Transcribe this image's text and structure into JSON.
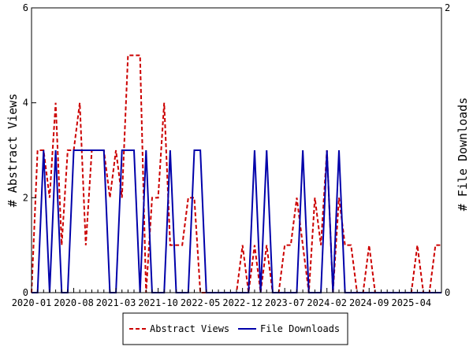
{
  "chart_data": {
    "type": "line",
    "x_start": "2020-01",
    "x_end": "2025-09",
    "x": [
      "2020-01",
      "2020-02",
      "2020-03",
      "2020-04",
      "2020-05",
      "2020-06",
      "2020-07",
      "2020-08",
      "2020-09",
      "2020-10",
      "2020-11",
      "2020-12",
      "2021-01",
      "2021-02",
      "2021-03",
      "2021-04",
      "2021-05",
      "2021-06",
      "2021-07",
      "2021-08",
      "2021-09",
      "2021-10",
      "2021-11",
      "2021-12",
      "2022-01",
      "2022-02",
      "2022-03",
      "2022-04",
      "2022-05",
      "2022-06",
      "2022-07",
      "2022-08",
      "2022-09",
      "2022-10",
      "2022-11",
      "2022-12",
      "2023-01",
      "2023-02",
      "2023-03",
      "2023-04",
      "2023-05",
      "2023-06",
      "2023-07",
      "2023-08",
      "2023-09",
      "2023-10",
      "2023-11",
      "2023-12",
      "2024-01",
      "2024-02",
      "2024-03",
      "2024-04",
      "2024-05",
      "2024-06",
      "2024-07",
      "2024-08",
      "2024-09",
      "2024-10",
      "2024-11",
      "2024-12",
      "2025-01",
      "2025-02",
      "2025-03",
      "2025-04",
      "2025-05",
      "2025-06",
      "2025-07",
      "2025-08",
      "2025-09"
    ],
    "x_tick_labels": [
      "2020-01",
      "2020-08",
      "2021-03",
      "2021-10",
      "2022-05",
      "2022-12",
      "2023-07",
      "2024-02",
      "2024-09",
      "2025-04"
    ],
    "xlabel": "",
    "ylabel_left": "# Abstract Views",
    "ylabel_right": "# File Downloads",
    "ylim_left": [
      0,
      6
    ],
    "ylim_right": [
      0,
      2
    ],
    "yticks_left": [
      "0",
      "2",
      "4",
      "6"
    ],
    "yticks_right": [
      "0",
      "2"
    ],
    "legend_position": "bottom",
    "series": [
      {
        "name": "Abstract Views",
        "axis": "left",
        "color": "#cc0000",
        "style": "dashed",
        "values": [
          0,
          3,
          3,
          2,
          4,
          1,
          3,
          3,
          4,
          1,
          3,
          3,
          3,
          2,
          3,
          2,
          5,
          5,
          5,
          0,
          2,
          2,
          4,
          1,
          1,
          1,
          2,
          2,
          0,
          0,
          0,
          0,
          0,
          0,
          0,
          1,
          0,
          1,
          0,
          1,
          0,
          0,
          1,
          1,
          2,
          1,
          0,
          2,
          1,
          3,
          0,
          2,
          1,
          1,
          0,
          0,
          1,
          0,
          0,
          0,
          0,
          0,
          0,
          0,
          1,
          0,
          0,
          1,
          1
        ]
      },
      {
        "name": "File Downloads",
        "axis": "right",
        "color": "#0000aa",
        "style": "solid",
        "values": [
          0,
          0,
          1,
          0,
          1,
          0,
          0,
          1,
          1,
          1,
          1,
          1,
          1,
          0,
          0,
          1,
          1,
          1,
          0,
          1,
          0,
          0,
          0,
          1,
          0,
          0,
          0,
          1,
          1,
          0,
          0,
          0,
          0,
          0,
          0,
          0,
          0,
          1,
          0,
          1,
          0,
          0,
          0,
          0,
          0,
          1,
          0,
          0,
          0,
          1,
          0,
          1,
          0,
          0,
          0,
          0,
          0,
          0,
          0,
          0,
          0,
          0,
          0,
          0,
          0,
          0,
          0,
          0,
          0
        ]
      }
    ]
  },
  "colors": {
    "abstract_views": "#cc0000",
    "file_downloads": "#0000aa",
    "axes": "#000000",
    "background": "#ffffff"
  }
}
